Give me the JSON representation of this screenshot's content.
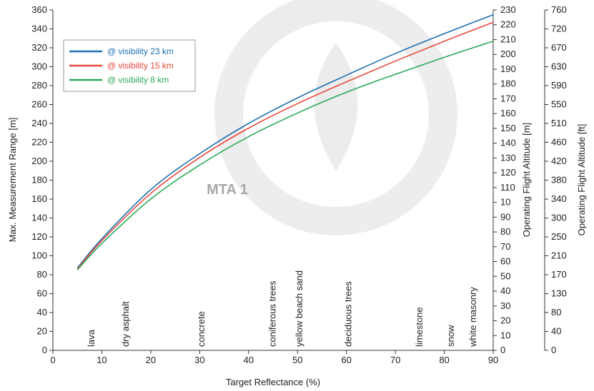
{
  "chart_data": {
    "type": "line",
    "title": "",
    "xlabel": "Target Reflectance (%)",
    "ylabel": "Max. Measurement Range [m]",
    "ylabel_right1": "Operating Flight Altitude [m]",
    "ylabel_right2": "Operating Flight Altitude [ft]",
    "watermark": "MTA 1",
    "xlim": [
      0,
      90
    ],
    "ylim": [
      0,
      360
    ],
    "grid": false,
    "legend_position": "top-left",
    "x_ticks": [
      "0",
      "10",
      "20",
      "30",
      "40",
      "50",
      "60",
      "70",
      "80",
      "90"
    ],
    "y_ticks": [
      "0",
      "20",
      "40",
      "60",
      "80",
      "100",
      "120",
      "140",
      "160",
      "180",
      "200",
      "220",
      "240",
      "260",
      "280",
      "300",
      "320",
      "340",
      "360"
    ],
    "right_axis_m_ticks": [
      "0",
      "10",
      "20",
      "30",
      "40",
      "50",
      "60",
      "70",
      "80",
      "90",
      "10",
      "110",
      "120",
      "130",
      "140",
      "150",
      "160",
      "170",
      "180",
      "190",
      "200",
      "210",
      "220",
      "230"
    ],
    "right_axis_ft_ticks": [
      "0",
      "40",
      "80",
      "130",
      "170",
      "210",
      "250",
      "300",
      "340",
      "380",
      "420",
      "460",
      "510",
      "550",
      "590",
      "630",
      "670",
      "720",
      "760"
    ],
    "series": [
      {
        "name": "@ visibility 23 km",
        "color": "#1f6fb2",
        "x": [
          5,
          10,
          20,
          30,
          40,
          50,
          60,
          70,
          80,
          90
        ],
        "y": [
          87,
          118,
          170,
          208,
          240,
          267,
          291,
          314,
          335,
          355
        ]
      },
      {
        "name": "@ visibility 15 km",
        "color": "#e8483a",
        "x": [
          5,
          10,
          20,
          30,
          40,
          50,
          60,
          70,
          80,
          90
        ],
        "y": [
          86,
          116,
          166,
          204,
          235,
          261,
          284,
          306,
          327,
          347
        ]
      },
      {
        "name": "@ visibility 8 km",
        "color": "#2ca85a",
        "x": [
          5,
          10,
          20,
          30,
          40,
          50,
          60,
          70,
          80,
          90
        ],
        "y": [
          85,
          113,
          160,
          196,
          226,
          251,
          273,
          292,
          310,
          327
        ]
      }
    ],
    "materials": [
      {
        "label": "lava",
        "x": 8.5
      },
      {
        "label": "dry asphalt",
        "x": 15.5
      },
      {
        "label": "concrete",
        "x": 31
      },
      {
        "label": "coniferous trees",
        "x": 45.5
      },
      {
        "label": "yellow beach sand",
        "x": 51
      },
      {
        "label": "deciduous trees",
        "x": 61
      },
      {
        "label": "limestone",
        "x": 75.5
      },
      {
        "label": "snow",
        "x": 82
      },
      {
        "label": "white masonry",
        "x": 86.5
      }
    ]
  }
}
